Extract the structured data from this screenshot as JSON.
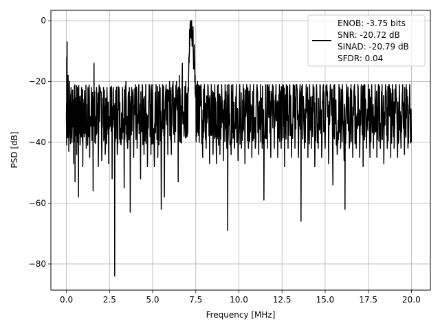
{
  "chart_data": {
    "type": "line",
    "xlabel": "Frequency [MHz]",
    "ylabel": "PSD [dB]",
    "xlim": [
      -0.9,
      21.1
    ],
    "ylim": [
      -88.6,
      3.4
    ],
    "grid": true,
    "x_ticks": [
      {
        "value": 0.0,
        "label": "0.0"
      },
      {
        "value": 2.5,
        "label": "2.5"
      },
      {
        "value": 5.0,
        "label": "5.0"
      },
      {
        "value": 7.5,
        "label": "7.5"
      },
      {
        "value": 10.0,
        "label": "10.0"
      },
      {
        "value": 12.5,
        "label": "12.5"
      },
      {
        "value": 15.0,
        "label": "15.0"
      },
      {
        "value": 17.5,
        "label": "17.5"
      },
      {
        "value": 20.0,
        "label": "20.0"
      }
    ],
    "y_ticks": [
      {
        "value": 0,
        "label": "0"
      },
      {
        "value": -20,
        "label": "−20"
      },
      {
        "value": -40,
        "label": "−40"
      },
      {
        "value": -60,
        "label": "−60"
      },
      {
        "value": -80,
        "label": "−80"
      }
    ],
    "legend": {
      "placement": "top-right",
      "lines": [
        "ENOB: -3.75 bits",
        "SNR: -20.72 dB",
        "SINAD: -20.79 dB",
        "SFDR: 0.04"
      ]
    },
    "series": [
      {
        "color": "#000000",
        "points": [
          [
            0.0,
            -30
          ],
          [
            0.02,
            -12
          ],
          [
            0.04,
            -7
          ],
          [
            0.06,
            -25
          ],
          [
            0.1,
            -18
          ],
          [
            0.14,
            -43
          ],
          [
            0.18,
            -20
          ],
          [
            0.22,
            -34
          ],
          [
            0.27,
            -22
          ],
          [
            0.32,
            -40
          ],
          [
            0.37,
            -25
          ],
          [
            0.42,
            -47
          ],
          [
            0.47,
            -22
          ],
          [
            0.5,
            -53
          ],
          [
            0.55,
            -28
          ],
          [
            0.6,
            -44
          ],
          [
            0.65,
            -22
          ],
          [
            0.7,
            -58
          ],
          [
            0.75,
            -25
          ],
          [
            0.8,
            -40
          ],
          [
            0.88,
            -22
          ],
          [
            0.95,
            -48
          ],
          [
            1.05,
            -23
          ],
          [
            1.15,
            -42
          ],
          [
            1.25,
            -22
          ],
          [
            1.35,
            -45
          ],
          [
            1.45,
            -22
          ],
          [
            1.55,
            -56
          ],
          [
            1.6,
            -14
          ],
          [
            1.65,
            -40
          ],
          [
            1.75,
            -22
          ],
          [
            1.85,
            -48
          ],
          [
            1.95,
            -22
          ],
          [
            2.05,
            -46
          ],
          [
            2.15,
            -22
          ],
          [
            2.25,
            -44
          ],
          [
            2.35,
            -22
          ],
          [
            2.45,
            -47
          ],
          [
            2.55,
            -22
          ],
          [
            2.65,
            -52
          ],
          [
            2.72,
            -22
          ],
          [
            2.8,
            -84
          ],
          [
            2.86,
            -23
          ],
          [
            2.95,
            -44
          ],
          [
            3.05,
            -22
          ],
          [
            3.15,
            -40
          ],
          [
            3.25,
            -22
          ],
          [
            3.35,
            -55
          ],
          [
            3.45,
            -20
          ],
          [
            3.55,
            -42
          ],
          [
            3.65,
            -22
          ],
          [
            3.7,
            -63
          ],
          [
            3.78,
            -22
          ],
          [
            3.9,
            -45
          ],
          [
            4.0,
            -21
          ],
          [
            4.1,
            -42
          ],
          [
            4.2,
            -21
          ],
          [
            4.3,
            -52
          ],
          [
            4.4,
            -21
          ],
          [
            4.5,
            -44
          ],
          [
            4.6,
            -21
          ],
          [
            4.7,
            -48
          ],
          [
            4.8,
            -21
          ],
          [
            4.9,
            -44
          ],
          [
            5.0,
            -21
          ],
          [
            5.1,
            -48
          ],
          [
            5.2,
            -21
          ],
          [
            5.3,
            -45
          ],
          [
            5.4,
            -21
          ],
          [
            5.5,
            -62
          ],
          [
            5.58,
            -21
          ],
          [
            5.68,
            -58
          ],
          [
            5.78,
            -21
          ],
          [
            5.88,
            -44
          ],
          [
            5.98,
            -20
          ],
          [
            6.08,
            -44
          ],
          [
            6.18,
            -20
          ],
          [
            6.28,
            -40
          ],
          [
            6.38,
            -20
          ],
          [
            6.48,
            -53
          ],
          [
            6.55,
            -18
          ],
          [
            6.62,
            -40
          ],
          [
            6.72,
            -14
          ],
          [
            6.82,
            -38
          ],
          [
            6.92,
            -20
          ],
          [
            7.0,
            -38
          ],
          [
            7.05,
            -22
          ],
          [
            7.1,
            -12
          ],
          [
            7.14,
            -3
          ],
          [
            7.18,
            0
          ],
          [
            7.22,
            -1
          ],
          [
            7.26,
            0
          ],
          [
            7.3,
            -4
          ],
          [
            7.34,
            -2
          ],
          [
            7.38,
            -12
          ],
          [
            7.42,
            -8
          ],
          [
            7.46,
            -18
          ],
          [
            7.5,
            -22
          ],
          [
            7.55,
            -38
          ],
          [
            7.6,
            -20
          ],
          [
            7.7,
            -40
          ],
          [
            7.8,
            -21
          ],
          [
            7.9,
            -45
          ],
          [
            8.0,
            -21
          ],
          [
            8.1,
            -42
          ],
          [
            8.2,
            -21
          ],
          [
            8.3,
            -47
          ],
          [
            8.4,
            -21
          ],
          [
            8.5,
            -44
          ],
          [
            8.6,
            -21
          ],
          [
            8.7,
            -47
          ],
          [
            8.8,
            -21
          ],
          [
            8.9,
            -44
          ],
          [
            9.0,
            -21
          ],
          [
            9.1,
            -46
          ],
          [
            9.2,
            -21
          ],
          [
            9.3,
            -42
          ],
          [
            9.35,
            -69
          ],
          [
            9.42,
            -21
          ],
          [
            9.55,
            -44
          ],
          [
            9.65,
            -21
          ],
          [
            9.75,
            -42
          ],
          [
            9.85,
            -21
          ],
          [
            9.95,
            -46
          ],
          [
            10.05,
            -21
          ],
          [
            10.15,
            -42
          ],
          [
            10.25,
            -21
          ],
          [
            10.35,
            -47
          ],
          [
            10.45,
            -21
          ],
          [
            10.55,
            -42
          ],
          [
            10.65,
            -21
          ],
          [
            10.75,
            -45
          ],
          [
            10.85,
            -21
          ],
          [
            10.95,
            -42
          ],
          [
            11.05,
            -21
          ],
          [
            11.15,
            -44
          ],
          [
            11.25,
            -21
          ],
          [
            11.35,
            -42
          ],
          [
            11.45,
            -59
          ],
          [
            11.55,
            -21
          ],
          [
            11.65,
            -42
          ],
          [
            11.75,
            -21
          ],
          [
            11.85,
            -45
          ],
          [
            11.95,
            -21
          ],
          [
            12.05,
            -42
          ],
          [
            12.15,
            -21
          ],
          [
            12.25,
            -45
          ],
          [
            12.35,
            -21
          ],
          [
            12.45,
            -42
          ],
          [
            12.55,
            -21
          ],
          [
            12.65,
            -48
          ],
          [
            12.75,
            -21
          ],
          [
            12.85,
            -42
          ],
          [
            12.95,
            -21
          ],
          [
            13.05,
            -45
          ],
          [
            13.15,
            -21
          ],
          [
            13.25,
            -42
          ],
          [
            13.35,
            -21
          ],
          [
            13.45,
            -45
          ],
          [
            13.55,
            -21
          ],
          [
            13.6,
            -66
          ],
          [
            13.68,
            -21
          ],
          [
            13.8,
            -42
          ],
          [
            13.9,
            -21
          ],
          [
            14.0,
            -45
          ],
          [
            14.1,
            -21
          ],
          [
            14.2,
            -42
          ],
          [
            14.3,
            -21
          ],
          [
            14.4,
            -48
          ],
          [
            14.5,
            -21
          ],
          [
            14.6,
            -42
          ],
          [
            14.7,
            -21
          ],
          [
            14.8,
            -45
          ],
          [
            14.9,
            -21
          ],
          [
            15.0,
            -42
          ],
          [
            15.1,
            -21
          ],
          [
            15.2,
            -47
          ],
          [
            15.3,
            -21
          ],
          [
            15.45,
            -54
          ],
          [
            15.55,
            -21
          ],
          [
            15.7,
            -44
          ],
          [
            15.8,
            -21
          ],
          [
            15.9,
            -42
          ],
          [
            16.0,
            -21
          ],
          [
            16.1,
            -46
          ],
          [
            16.15,
            -62
          ],
          [
            16.25,
            -21
          ],
          [
            16.4,
            -42
          ],
          [
            16.5,
            -21
          ],
          [
            16.6,
            -45
          ],
          [
            16.7,
            -21
          ],
          [
            16.8,
            -42
          ],
          [
            16.9,
            -21
          ],
          [
            17.0,
            -45
          ],
          [
            17.1,
            -21
          ],
          [
            17.2,
            -48
          ],
          [
            17.3,
            -21
          ],
          [
            17.4,
            -42
          ],
          [
            17.5,
            -21
          ],
          [
            17.6,
            -45
          ],
          [
            17.7,
            -21
          ],
          [
            17.8,
            -42
          ],
          [
            17.9,
            -21
          ],
          [
            18.0,
            -45
          ],
          [
            18.1,
            -21
          ],
          [
            18.2,
            -42
          ],
          [
            18.3,
            -21
          ],
          [
            18.4,
            -47
          ],
          [
            18.5,
            -21
          ],
          [
            18.6,
            -42
          ],
          [
            18.7,
            -21
          ],
          [
            18.8,
            -45
          ],
          [
            18.9,
            -21
          ],
          [
            19.0,
            -42
          ],
          [
            19.1,
            -21
          ],
          [
            19.2,
            -45
          ],
          [
            19.3,
            -21
          ],
          [
            19.4,
            -42
          ],
          [
            19.5,
            -21
          ],
          [
            19.6,
            -44
          ],
          [
            19.7,
            -21
          ],
          [
            19.8,
            -42
          ],
          [
            19.9,
            -21
          ],
          [
            20.0,
            -40
          ]
        ]
      }
    ]
  }
}
